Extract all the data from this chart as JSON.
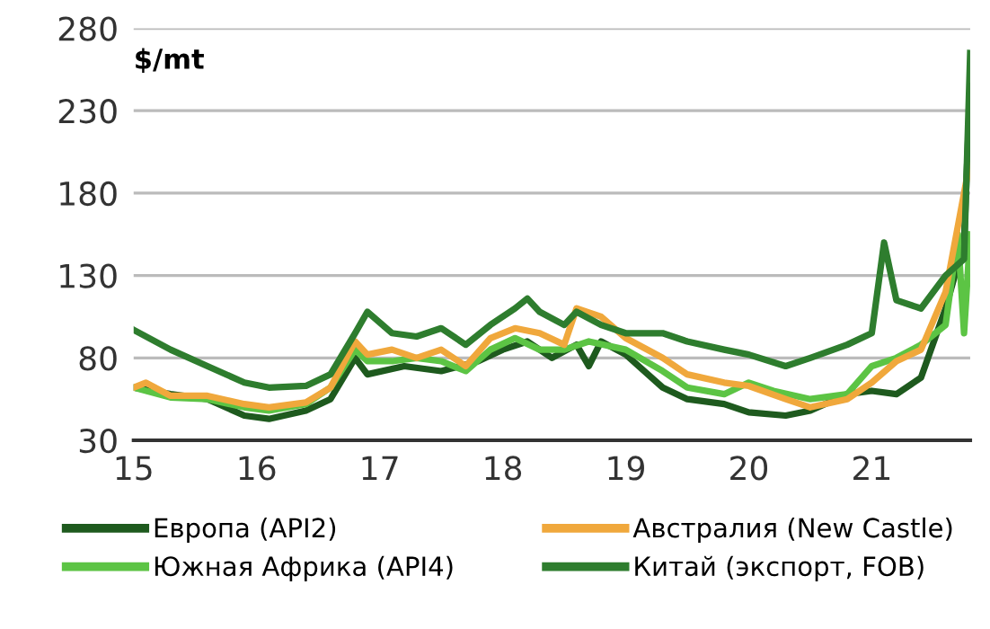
{
  "chart_data": {
    "type": "line",
    "ylabel": "$/mt",
    "xlim": [
      15,
      21.8
    ],
    "xticks": [
      15,
      16,
      17,
      18,
      19,
      20,
      21
    ],
    "ylim": [
      30,
      280
    ],
    "yticks": [
      30,
      80,
      130,
      180,
      230,
      280
    ],
    "grid": "y",
    "legend": "bottom",
    "line_style": "solid",
    "marker": "none",
    "series": [
      {
        "name": "Европа (API2)",
        "color": "#1e5a1e",
        "x": [
          15.0,
          15.3,
          15.6,
          15.9,
          16.1,
          16.4,
          16.6,
          16.8,
          16.9,
          17.2,
          17.5,
          17.8,
          18.0,
          18.2,
          18.4,
          18.6,
          18.7,
          18.8,
          19.0,
          19.3,
          19.5,
          19.8,
          20.0,
          20.3,
          20.5,
          20.8,
          21.0,
          21.2,
          21.4,
          21.6,
          21.75,
          21.8
        ],
        "values": [
          62,
          58,
          55,
          45,
          43,
          48,
          55,
          80,
          70,
          75,
          72,
          78,
          85,
          90,
          80,
          88,
          75,
          90,
          82,
          62,
          55,
          52,
          47,
          45,
          48,
          58,
          60,
          58,
          68,
          110,
          150,
          245
        ]
      },
      {
        "name": "Южная Африка (API4)",
        "color": "#5cc444",
        "x": [
          15.0,
          15.3,
          15.6,
          15.9,
          16.1,
          16.4,
          16.6,
          16.8,
          16.9,
          17.1,
          17.3,
          17.5,
          17.7,
          17.9,
          18.1,
          18.3,
          18.5,
          18.7,
          19.0,
          19.3,
          19.5,
          19.8,
          20.0,
          20.2,
          20.5,
          20.8,
          21.0,
          21.2,
          21.4,
          21.6,
          21.7,
          21.75,
          21.8
        ],
        "values": [
          62,
          56,
          55,
          50,
          48,
          52,
          62,
          85,
          78,
          78,
          80,
          78,
          72,
          85,
          92,
          85,
          85,
          90,
          85,
          72,
          62,
          58,
          65,
          60,
          55,
          58,
          75,
          80,
          88,
          100,
          155,
          95,
          155
        ]
      },
      {
        "name": "Австралия (New Castle)",
        "color": "#f0a83c",
        "x": [
          15.0,
          15.1,
          15.3,
          15.6,
          15.9,
          16.1,
          16.4,
          16.6,
          16.8,
          16.9,
          17.1,
          17.3,
          17.5,
          17.7,
          17.9,
          18.1,
          18.3,
          18.5,
          18.6,
          18.8,
          19.0,
          19.3,
          19.5,
          19.8,
          20.0,
          20.3,
          20.5,
          20.8,
          21.0,
          21.2,
          21.4,
          21.6,
          21.8
        ],
        "values": [
          62,
          65,
          57,
          57,
          52,
          50,
          53,
          62,
          90,
          82,
          85,
          80,
          85,
          75,
          92,
          98,
          95,
          88,
          110,
          105,
          92,
          80,
          70,
          65,
          63,
          55,
          50,
          55,
          65,
          78,
          85,
          120,
          200
        ]
      },
      {
        "name": "Китай (экспорт, FOB)",
        "color": "#2e7d2e",
        "x": [
          15.0,
          15.3,
          15.6,
          15.9,
          16.1,
          16.4,
          16.6,
          16.8,
          16.9,
          17.1,
          17.3,
          17.5,
          17.7,
          17.9,
          18.1,
          18.2,
          18.3,
          18.5,
          18.6,
          18.8,
          19.0,
          19.3,
          19.5,
          19.8,
          20.0,
          20.3,
          20.5,
          20.8,
          21.0,
          21.1,
          21.2,
          21.4,
          21.6,
          21.75,
          21.8
        ],
        "values": [
          97,
          85,
          75,
          65,
          62,
          63,
          70,
          95,
          108,
          95,
          93,
          98,
          88,
          100,
          110,
          116,
          108,
          100,
          108,
          100,
          95,
          95,
          90,
          85,
          82,
          75,
          80,
          88,
          95,
          150,
          115,
          110,
          130,
          140,
          265
        ]
      }
    ]
  }
}
